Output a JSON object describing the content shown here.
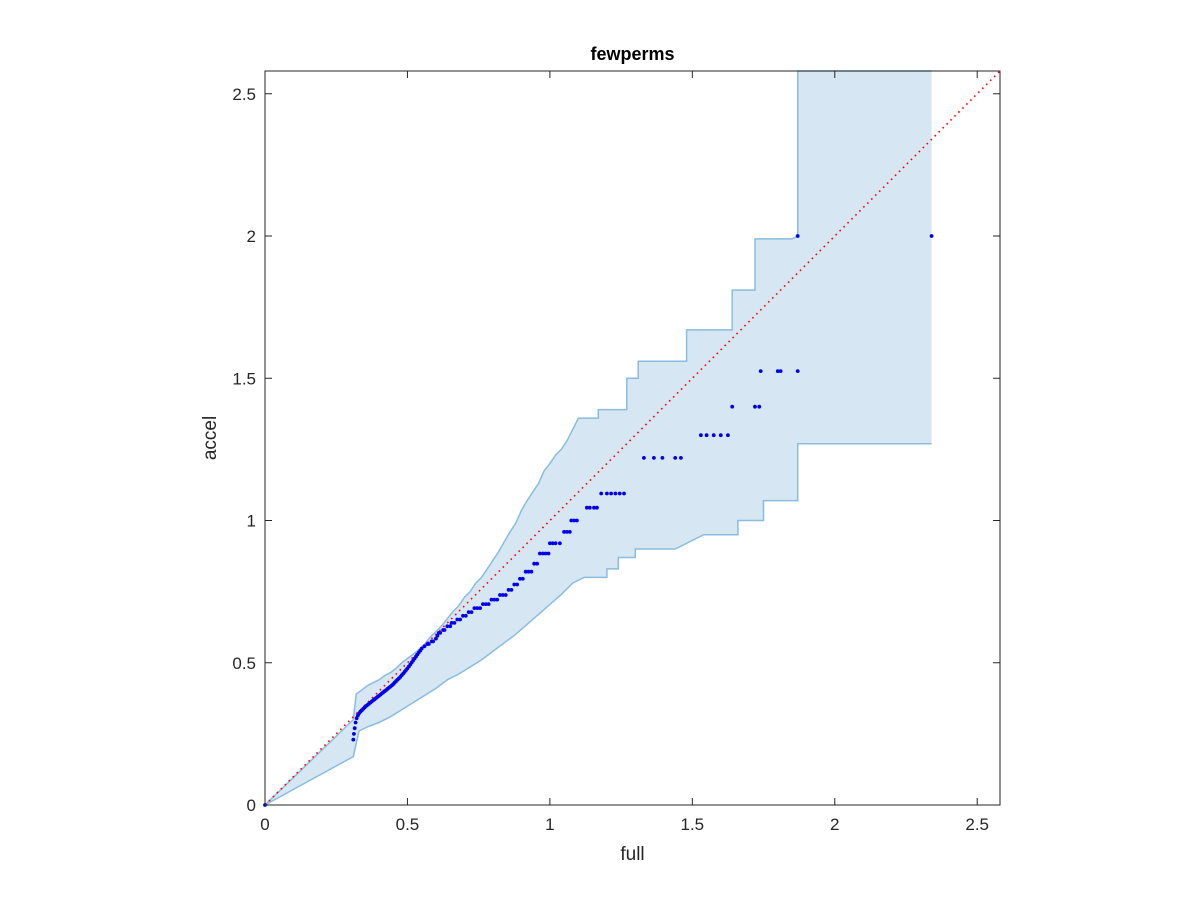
{
  "chart_data": {
    "type": "scatter",
    "title": "fewperms",
    "xlabel": "full",
    "ylabel": "accel",
    "xlim": [
      0,
      2.58
    ],
    "ylim": [
      0,
      2.58
    ],
    "xticks": [
      "0",
      "0.5",
      "1",
      "1.5",
      "2",
      "2.5"
    ],
    "yticks": [
      "0",
      "0.5",
      "1",
      "1.5",
      "2",
      "2.5"
    ],
    "xtick_values": [
      0,
      0.5,
      1,
      1.5,
      2,
      2.5
    ],
    "ytick_values": [
      0,
      0.5,
      1,
      1.5,
      2,
      2.5
    ],
    "grid": false,
    "legend": "none",
    "colors": {
      "points": "#0000ee",
      "band_fill": "#d6e7f3",
      "band_edge": "#88bde0",
      "reference": "#ff0000",
      "axes": "#262626"
    },
    "reference_line": {
      "style": "dotted",
      "from": [
        0,
        0
      ],
      "to": [
        2.58,
        2.58
      ]
    },
    "series": [
      {
        "values": [
          [
            0.0,
            0.0
          ],
          [
            0.31,
            0.23
          ],
          [
            0.312,
            0.25
          ],
          [
            0.315,
            0.27
          ],
          [
            0.318,
            0.29
          ],
          [
            0.322,
            0.305
          ],
          [
            0.326,
            0.315
          ],
          [
            0.33,
            0.322
          ],
          [
            0.335,
            0.328
          ],
          [
            0.34,
            0.333
          ],
          [
            0.345,
            0.338
          ],
          [
            0.35,
            0.343
          ],
          [
            0.355,
            0.348
          ],
          [
            0.36,
            0.352
          ],
          [
            0.365,
            0.356
          ],
          [
            0.37,
            0.36
          ],
          [
            0.375,
            0.364
          ],
          [
            0.38,
            0.368
          ],
          [
            0.385,
            0.372
          ],
          [
            0.39,
            0.376
          ],
          [
            0.395,
            0.38
          ],
          [
            0.4,
            0.384
          ],
          [
            0.405,
            0.388
          ],
          [
            0.41,
            0.392
          ],
          [
            0.415,
            0.396
          ],
          [
            0.42,
            0.4
          ],
          [
            0.425,
            0.404
          ],
          [
            0.43,
            0.408
          ],
          [
            0.435,
            0.412
          ],
          [
            0.44,
            0.416
          ],
          [
            0.445,
            0.42
          ],
          [
            0.45,
            0.425
          ],
          [
            0.455,
            0.43
          ],
          [
            0.46,
            0.435
          ],
          [
            0.465,
            0.44
          ],
          [
            0.47,
            0.445
          ],
          [
            0.475,
            0.45
          ],
          [
            0.48,
            0.456
          ],
          [
            0.485,
            0.462
          ],
          [
            0.49,
            0.468
          ],
          [
            0.495,
            0.474
          ],
          [
            0.5,
            0.48
          ],
          [
            0.505,
            0.487
          ],
          [
            0.51,
            0.494
          ],
          [
            0.515,
            0.501
          ],
          [
            0.52,
            0.508
          ],
          [
            0.525,
            0.515
          ],
          [
            0.53,
            0.522
          ],
          [
            0.535,
            0.529
          ],
          [
            0.54,
            0.536
          ],
          [
            0.545,
            0.543
          ],
          [
            0.55,
            0.55
          ],
          [
            0.56,
            0.558
          ],
          [
            0.57,
            0.566
          ],
          [
            0.575,
            0.566
          ],
          [
            0.585,
            0.575
          ],
          [
            0.59,
            0.575
          ],
          [
            0.6,
            0.585
          ],
          [
            0.605,
            0.595
          ],
          [
            0.61,
            0.605
          ],
          [
            0.615,
            0.605
          ],
          [
            0.625,
            0.615
          ],
          [
            0.63,
            0.615
          ],
          [
            0.64,
            0.628
          ],
          [
            0.65,
            0.628
          ],
          [
            0.655,
            0.64
          ],
          [
            0.665,
            0.64
          ],
          [
            0.675,
            0.652
          ],
          [
            0.685,
            0.652
          ],
          [
            0.695,
            0.665
          ],
          [
            0.705,
            0.665
          ],
          [
            0.715,
            0.678
          ],
          [
            0.725,
            0.678
          ],
          [
            0.735,
            0.692
          ],
          [
            0.745,
            0.692
          ],
          [
            0.755,
            0.692
          ],
          [
            0.765,
            0.706
          ],
          [
            0.775,
            0.706
          ],
          [
            0.785,
            0.706
          ],
          [
            0.795,
            0.722
          ],
          [
            0.805,
            0.722
          ],
          [
            0.815,
            0.722
          ],
          [
            0.825,
            0.738
          ],
          [
            0.835,
            0.738
          ],
          [
            0.845,
            0.738
          ],
          [
            0.855,
            0.756
          ],
          [
            0.865,
            0.756
          ],
          [
            0.875,
            0.775
          ],
          [
            0.885,
            0.775
          ],
          [
            0.895,
            0.795
          ],
          [
            0.905,
            0.795
          ],
          [
            0.915,
            0.82
          ],
          [
            0.925,
            0.82
          ],
          [
            0.935,
            0.82
          ],
          [
            0.945,
            0.848
          ],
          [
            0.955,
            0.848
          ],
          [
            0.965,
            0.884
          ],
          [
            0.975,
            0.884
          ],
          [
            0.985,
            0.884
          ],
          [
            0.995,
            0.884
          ],
          [
            1.0,
            0.92
          ],
          [
            1.01,
            0.92
          ],
          [
            1.02,
            0.92
          ],
          [
            1.035,
            0.92
          ],
          [
            1.05,
            0.96
          ],
          [
            1.06,
            0.96
          ],
          [
            1.07,
            0.96
          ],
          [
            1.075,
            1.0
          ],
          [
            1.085,
            1.0
          ],
          [
            1.095,
            1.0
          ],
          [
            1.13,
            1.045
          ],
          [
            1.14,
            1.045
          ],
          [
            1.155,
            1.045
          ],
          [
            1.165,
            1.045
          ],
          [
            1.18,
            1.095
          ],
          [
            1.2,
            1.095
          ],
          [
            1.215,
            1.095
          ],
          [
            1.23,
            1.095
          ],
          [
            1.245,
            1.095
          ],
          [
            1.26,
            1.095
          ],
          [
            1.33,
            1.22
          ],
          [
            1.365,
            1.22
          ],
          [
            1.395,
            1.22
          ],
          [
            1.44,
            1.22
          ],
          [
            1.46,
            1.22
          ],
          [
            1.53,
            1.3
          ],
          [
            1.55,
            1.3
          ],
          [
            1.575,
            1.3
          ],
          [
            1.6,
            1.3
          ],
          [
            1.625,
            1.3
          ],
          [
            1.64,
            1.4
          ],
          [
            1.72,
            1.4
          ],
          [
            1.735,
            1.4
          ],
          [
            1.74,
            1.525
          ],
          [
            1.8,
            1.525
          ],
          [
            1.81,
            1.525
          ],
          [
            1.87,
            1.525
          ],
          [
            1.87,
            2.0
          ],
          [
            2.34,
            2.0
          ]
        ]
      }
    ],
    "band": {
      "upper": [
        [
          0.0,
          0.0
        ],
        [
          0.31,
          0.3
        ],
        [
          0.32,
          0.39
        ],
        [
          0.34,
          0.405
        ],
        [
          0.36,
          0.42
        ],
        [
          0.38,
          0.43
        ],
        [
          0.4,
          0.44
        ],
        [
          0.42,
          0.455
        ],
        [
          0.44,
          0.465
        ],
        [
          0.46,
          0.48
        ],
        [
          0.48,
          0.5
        ],
        [
          0.5,
          0.515
        ],
        [
          0.52,
          0.53
        ],
        [
          0.54,
          0.545
        ],
        [
          0.56,
          0.565
        ],
        [
          0.58,
          0.59
        ],
        [
          0.6,
          0.61
        ],
        [
          0.62,
          0.63
        ],
        [
          0.64,
          0.655
        ],
        [
          0.66,
          0.68
        ],
        [
          0.68,
          0.7
        ],
        [
          0.7,
          0.73
        ],
        [
          0.72,
          0.75
        ],
        [
          0.74,
          0.78
        ],
        [
          0.76,
          0.8
        ],
        [
          0.78,
          0.83
        ],
        [
          0.8,
          0.86
        ],
        [
          0.82,
          0.89
        ],
        [
          0.84,
          0.925
        ],
        [
          0.86,
          0.96
        ],
        [
          0.88,
          0.99
        ],
        [
          0.9,
          1.035
        ],
        [
          0.92,
          1.07
        ],
        [
          0.94,
          1.1
        ],
        [
          0.96,
          1.13
        ],
        [
          0.98,
          1.175
        ],
        [
          1.0,
          1.2
        ],
        [
          1.02,
          1.23
        ],
        [
          1.04,
          1.25
        ],
        [
          1.06,
          1.28
        ],
        [
          1.08,
          1.32
        ],
        [
          1.1,
          1.36
        ],
        [
          1.17,
          1.36
        ],
        [
          1.17,
          1.39
        ],
        [
          1.24,
          1.39
        ],
        [
          1.27,
          1.39
        ],
        [
          1.27,
          1.5
        ],
        [
          1.31,
          1.5
        ],
        [
          1.31,
          1.56
        ],
        [
          1.48,
          1.56
        ],
        [
          1.48,
          1.67
        ],
        [
          1.64,
          1.67
        ],
        [
          1.64,
          1.81
        ],
        [
          1.72,
          1.81
        ],
        [
          1.72,
          1.99
        ],
        [
          1.85,
          1.99
        ],
        [
          1.87,
          2.0
        ],
        [
          1.87,
          2.58
        ],
        [
          2.34,
          2.58
        ]
      ],
      "lower": [
        [
          0.0,
          0.0
        ],
        [
          0.31,
          0.17
        ],
        [
          0.33,
          0.26
        ],
        [
          0.36,
          0.275
        ],
        [
          0.4,
          0.29
        ],
        [
          0.44,
          0.31
        ],
        [
          0.48,
          0.335
        ],
        [
          0.52,
          0.36
        ],
        [
          0.56,
          0.385
        ],
        [
          0.6,
          0.41
        ],
        [
          0.64,
          0.44
        ],
        [
          0.68,
          0.46
        ],
        [
          0.72,
          0.485
        ],
        [
          0.76,
          0.51
        ],
        [
          0.8,
          0.54
        ],
        [
          0.84,
          0.57
        ],
        [
          0.88,
          0.6
        ],
        [
          0.92,
          0.635
        ],
        [
          0.96,
          0.67
        ],
        [
          1.0,
          0.705
        ],
        [
          1.04,
          0.74
        ],
        [
          1.08,
          0.78
        ],
        [
          1.12,
          0.8
        ],
        [
          1.2,
          0.8
        ],
        [
          1.2,
          0.83
        ],
        [
          1.24,
          0.83
        ],
        [
          1.24,
          0.87
        ],
        [
          1.3,
          0.87
        ],
        [
          1.3,
          0.9
        ],
        [
          1.44,
          0.9
        ],
        [
          1.54,
          0.95
        ],
        [
          1.66,
          0.95
        ],
        [
          1.66,
          1.0
        ],
        [
          1.75,
          1.0
        ],
        [
          1.75,
          1.07
        ],
        [
          1.87,
          1.07
        ],
        [
          1.87,
          1.27
        ],
        [
          2.34,
          1.27
        ]
      ]
    }
  }
}
